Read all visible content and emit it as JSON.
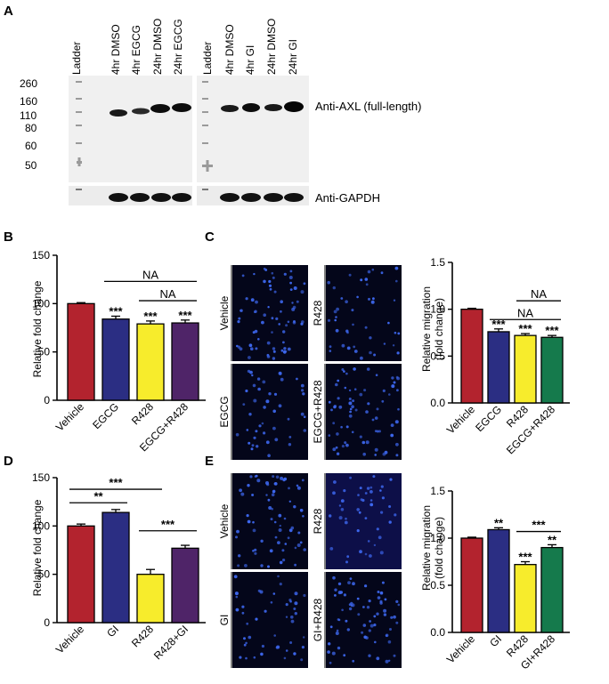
{
  "colors": {
    "red": "#b3232e",
    "blue": "#2b2e83",
    "yellow": "#f7ec2c",
    "purple": "#4f2468",
    "green": "#157a4c",
    "microscopy_bg": "#04061a",
    "nucleus": "#3d67ee"
  },
  "panelA": {
    "letter": "A",
    "lanes_left": [
      "Ladder",
      "4hr DMSO",
      "4hr EGCG",
      "24hr DMSO",
      "24hr EGCG"
    ],
    "lanes_right": [
      "Ladder",
      "4hr DMSO",
      "4hr GI",
      "24hr DMSO",
      "24hr GI"
    ],
    "markers": [
      "260",
      "160",
      "110",
      "80",
      "60",
      "50"
    ],
    "label_axl": "Anti-AXL (full-length)",
    "label_gapdh": "Anti-GAPDH"
  },
  "micro": {
    "C": {
      "letter": "C",
      "labels": [
        "Vehicle",
        "R428",
        "EGCG",
        "EGCG+R428"
      ]
    },
    "E": {
      "letter": "E",
      "labels": [
        "Vehicle",
        "R428",
        "GI",
        "GI+R428"
      ]
    }
  },
  "chart_data": [
    {
      "id": "B",
      "letter": "B",
      "type": "bar",
      "ylabel": "Relative fold change",
      "ylim": [
        0,
        150
      ],
      "yticks": [
        0,
        50,
        100,
        150
      ],
      "categories": [
        "Vehicle",
        "EGCG",
        "R428",
        "EGCG+R428"
      ],
      "values": [
        100,
        84,
        79,
        80
      ],
      "errors": [
        1,
        3,
        3,
        3
      ],
      "stars": [
        "",
        "***",
        "***",
        "***"
      ],
      "colors": [
        "red",
        "blue",
        "yellow",
        "purple"
      ],
      "brackets": [
        {
          "from": 1,
          "to": 3,
          "y": 123,
          "label": "NA"
        },
        {
          "from": 2,
          "to": 3,
          "y": 103,
          "label": "NA"
        }
      ]
    },
    {
      "id": "C",
      "letter": "",
      "type": "bar",
      "ylabel": "Relative migration (fold change)",
      "ylim": [
        0,
        1.5
      ],
      "yticks": [
        "0.0",
        "0.5",
        "1.0",
        "1.5"
      ],
      "categories": [
        "Vehicle",
        "EGCG",
        "R428",
        "EGCG+R428"
      ],
      "values": [
        1.0,
        0.76,
        0.72,
        0.7
      ],
      "errors": [
        0.01,
        0.03,
        0.02,
        0.02
      ],
      "stars": [
        "",
        "***",
        "***",
        "***"
      ],
      "colors": [
        "red",
        "blue",
        "yellow",
        "green"
      ],
      "brackets": [
        {
          "from": 2,
          "to": 3,
          "y": 1.09,
          "label": "NA"
        },
        {
          "from": 1,
          "to": 3,
          "y": 0.89,
          "label": "NA"
        }
      ]
    },
    {
      "id": "D",
      "letter": "D",
      "type": "bar",
      "ylabel": "Relative fold change",
      "ylim": [
        0,
        150
      ],
      "yticks": [
        0,
        50,
        100,
        150
      ],
      "categories": [
        "Vehicle",
        "GI",
        "R428",
        "R428+GI"
      ],
      "values": [
        100,
        114,
        50,
        77
      ],
      "errors": [
        2,
        3,
        5,
        3
      ],
      "stars": [
        "",
        "",
        "",
        ""
      ],
      "colors": [
        "red",
        "blue",
        "yellow",
        "purple"
      ],
      "brackets": [
        {
          "from": 0,
          "to": 2,
          "y": 138,
          "label": "***"
        },
        {
          "from": 0,
          "to": 1,
          "y": 124,
          "label": "**"
        },
        {
          "from": 2,
          "to": 3,
          "y": 95,
          "label": "***"
        }
      ]
    },
    {
      "id": "E",
      "letter": "",
      "type": "bar",
      "ylabel": "Relative migration (fold change)",
      "ylim": [
        0,
        1.5
      ],
      "yticks": [
        "0.0",
        "0.5",
        "1.0",
        "1.5"
      ],
      "categories": [
        "Vehicle",
        "GI",
        "R428",
        "GI+R428"
      ],
      "values": [
        1.0,
        1.09,
        0.72,
        0.9
      ],
      "errors": [
        0.01,
        0.02,
        0.03,
        0.03
      ],
      "stars": [
        "",
        "**",
        "***",
        "**"
      ],
      "colors": [
        "red",
        "blue",
        "yellow",
        "green"
      ],
      "brackets": [
        {
          "from": 2,
          "to": 3,
          "y": 1.07,
          "label": "***"
        }
      ]
    }
  ]
}
